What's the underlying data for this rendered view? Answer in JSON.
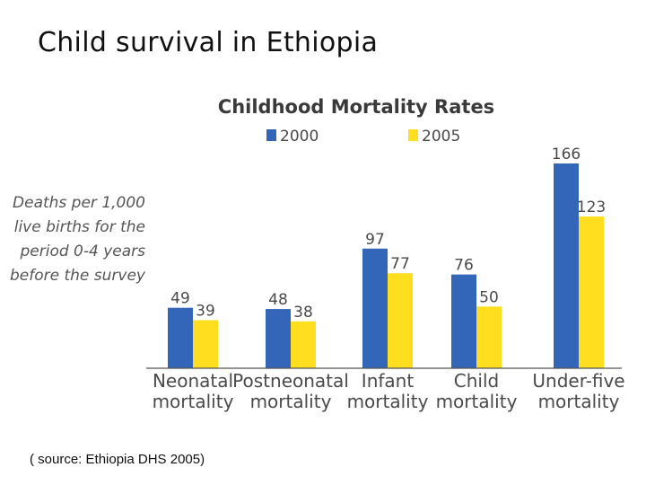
{
  "slide": {
    "title": "Child  survival in Ethiopia",
    "source": "( source:  Ethiopia DHS 2005)"
  },
  "chart_data": {
    "type": "bar",
    "title": "Childhood Mortality Rates",
    "ylabel_lines": [
      "Deaths per 1,000",
      "live births for the",
      "period 0-4 years",
      "before the survey"
    ],
    "categories": [
      [
        "Neonatal",
        "mortality"
      ],
      [
        "Postneonatal",
        "mortality"
      ],
      [
        "Infant",
        "mortality"
      ],
      [
        "Child",
        "mortality"
      ],
      [
        "Under-five",
        "mortality"
      ]
    ],
    "series": [
      {
        "name": "2000",
        "color": "#3366b8",
        "values": [
          49,
          48,
          97,
          76,
          166
        ]
      },
      {
        "name": "2005",
        "color": "#ffdd1f",
        "values": [
          39,
          38,
          77,
          50,
          123
        ]
      }
    ],
    "ylim": [
      0,
      166
    ],
    "grid": false,
    "legend_position": "top"
  }
}
